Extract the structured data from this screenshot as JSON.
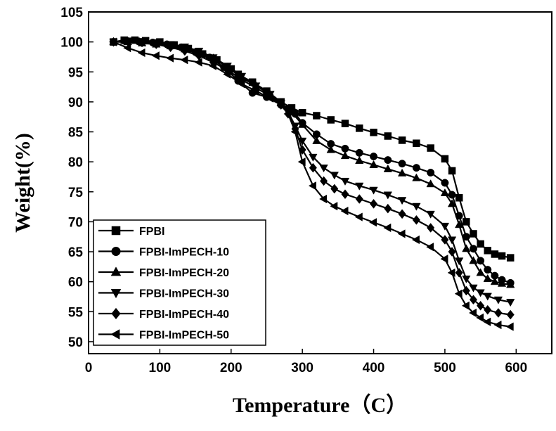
{
  "chart_data": {
    "type": "line",
    "title": "",
    "xlabel": "Temperature（C）",
    "ylabel": "Weight(%)",
    "xlim": [
      0,
      650
    ],
    "ylim": [
      48,
      105
    ],
    "xticks": [
      0,
      100,
      200,
      300,
      400,
      500,
      600
    ],
    "yticks": [
      50,
      55,
      60,
      65,
      70,
      75,
      80,
      85,
      90,
      95,
      100,
      105
    ],
    "grid": false,
    "legend_position": "bottom-left",
    "series": [
      {
        "name": "FPBI",
        "marker": "square",
        "points": [
          [
            35,
            100
          ],
          [
            50,
            100.3
          ],
          [
            65,
            100.3
          ],
          [
            80,
            100.2
          ],
          [
            100,
            100
          ],
          [
            120,
            99.5
          ],
          [
            140,
            98.9
          ],
          [
            160,
            98
          ],
          [
            180,
            97
          ],
          [
            200,
            95.5
          ],
          [
            210,
            94.6
          ],
          [
            230,
            93.3
          ],
          [
            250,
            91.8
          ],
          [
            270,
            90
          ],
          [
            285,
            89
          ],
          [
            300,
            88.2
          ],
          [
            320,
            87.7
          ],
          [
            340,
            87
          ],
          [
            360,
            86.4
          ],
          [
            380,
            85.6
          ],
          [
            400,
            84.9
          ],
          [
            420,
            84.3
          ],
          [
            440,
            83.6
          ],
          [
            460,
            83.1
          ],
          [
            480,
            82.3
          ],
          [
            500,
            80.5
          ],
          [
            510,
            78.5
          ],
          [
            520,
            74
          ],
          [
            530,
            70
          ],
          [
            540,
            68
          ],
          [
            550,
            66.3
          ],
          [
            560,
            65.2
          ],
          [
            570,
            64.6
          ],
          [
            580,
            64.3
          ],
          [
            592,
            64
          ]
        ]
      },
      {
        "name": "FPBI-ImPECH-10",
        "marker": "circle",
        "points": [
          [
            35,
            100
          ],
          [
            50,
            100.2
          ],
          [
            70,
            100.1
          ],
          [
            90,
            99.9
          ],
          [
            110,
            99.6
          ],
          [
            130,
            99.1
          ],
          [
            150,
            98.3
          ],
          [
            170,
            97.4
          ],
          [
            190,
            95.8
          ],
          [
            210,
            93.5
          ],
          [
            230,
            91.5
          ],
          [
            250,
            90.8
          ],
          [
            270,
            89.5
          ],
          [
            280,
            88.9
          ],
          [
            290,
            88
          ],
          [
            300,
            86.5
          ],
          [
            320,
            84.6
          ],
          [
            340,
            83
          ],
          [
            360,
            82.2
          ],
          [
            380,
            81.5
          ],
          [
            400,
            80.9
          ],
          [
            420,
            80.3
          ],
          [
            440,
            79.7
          ],
          [
            460,
            79
          ],
          [
            480,
            78.2
          ],
          [
            500,
            76.5
          ],
          [
            510,
            74.5
          ],
          [
            520,
            71
          ],
          [
            530,
            67.5
          ],
          [
            540,
            65.5
          ],
          [
            550,
            63.5
          ],
          [
            560,
            62
          ],
          [
            570,
            61
          ],
          [
            580,
            60.3
          ],
          [
            592,
            59.8
          ]
        ]
      },
      {
        "name": "FPBI-ImPECH-20",
        "marker": "triangle-up",
        "points": [
          [
            35,
            100
          ],
          [
            55,
            100
          ],
          [
            75,
            99.8
          ],
          [
            95,
            99.6
          ],
          [
            115,
            99.3
          ],
          [
            135,
            98.8
          ],
          [
            155,
            98.1
          ],
          [
            175,
            97.3
          ],
          [
            195,
            95.8
          ],
          [
            215,
            94
          ],
          [
            235,
            92.7
          ],
          [
            255,
            91.2
          ],
          [
            270,
            89.8
          ],
          [
            285,
            88.3
          ],
          [
            300,
            86.2
          ],
          [
            320,
            83.5
          ],
          [
            340,
            82
          ],
          [
            360,
            81
          ],
          [
            380,
            80.2
          ],
          [
            400,
            79.5
          ],
          [
            420,
            78.8
          ],
          [
            440,
            78.1
          ],
          [
            460,
            77.3
          ],
          [
            480,
            76.3
          ],
          [
            500,
            74.8
          ],
          [
            510,
            73
          ],
          [
            520,
            69.5
          ],
          [
            530,
            65.5
          ],
          [
            540,
            63.5
          ],
          [
            550,
            61.5
          ],
          [
            560,
            60.5
          ],
          [
            570,
            60
          ],
          [
            580,
            59.7
          ],
          [
            592,
            59.5
          ]
        ]
      },
      {
        "name": "FPBI-ImPECH-30",
        "marker": "triangle-down",
        "points": [
          [
            35,
            100
          ],
          [
            55,
            100.2
          ],
          [
            75,
            100.1
          ],
          [
            95,
            99.9
          ],
          [
            115,
            99.6
          ],
          [
            135,
            99.2
          ],
          [
            155,
            98.5
          ],
          [
            175,
            97.4
          ],
          [
            195,
            96
          ],
          [
            215,
            94.3
          ],
          [
            235,
            92.7
          ],
          [
            255,
            91.3
          ],
          [
            270,
            89.8
          ],
          [
            280,
            88.3
          ],
          [
            290,
            86
          ],
          [
            300,
            83.5
          ],
          [
            315,
            80.8
          ],
          [
            330,
            79
          ],
          [
            345,
            77.8
          ],
          [
            360,
            76.8
          ],
          [
            380,
            76
          ],
          [
            400,
            75.3
          ],
          [
            420,
            74.5
          ],
          [
            440,
            73.6
          ],
          [
            460,
            72.6
          ],
          [
            480,
            71.3
          ],
          [
            500,
            69.3
          ],
          [
            510,
            67
          ],
          [
            520,
            63.5
          ],
          [
            530,
            60.5
          ],
          [
            540,
            59
          ],
          [
            550,
            58.2
          ],
          [
            560,
            57.6
          ],
          [
            575,
            57
          ],
          [
            592,
            56.6
          ]
        ]
      },
      {
        "name": "FPBI-ImPECH-40",
        "marker": "diamond",
        "points": [
          [
            35,
            100
          ],
          [
            55,
            100.1
          ],
          [
            75,
            99.9
          ],
          [
            95,
            99.6
          ],
          [
            115,
            99.1
          ],
          [
            135,
            98.5
          ],
          [
            155,
            97.7
          ],
          [
            175,
            96.6
          ],
          [
            195,
            95.3
          ],
          [
            215,
            93.7
          ],
          [
            235,
            92.3
          ],
          [
            255,
            91
          ],
          [
            270,
            89.5
          ],
          [
            280,
            88
          ],
          [
            290,
            85.5
          ],
          [
            300,
            82
          ],
          [
            315,
            79
          ],
          [
            330,
            76.8
          ],
          [
            345,
            75.5
          ],
          [
            360,
            74.6
          ],
          [
            380,
            73.8
          ],
          [
            400,
            73
          ],
          [
            420,
            72.2
          ],
          [
            440,
            71.3
          ],
          [
            460,
            70.3
          ],
          [
            480,
            69
          ],
          [
            500,
            67
          ],
          [
            510,
            65
          ],
          [
            520,
            61.5
          ],
          [
            530,
            58.5
          ],
          [
            540,
            57
          ],
          [
            550,
            56
          ],
          [
            560,
            55.3
          ],
          [
            575,
            54.8
          ],
          [
            592,
            54.5
          ]
        ]
      },
      {
        "name": "FPBI-ImPECH-50",
        "marker": "triangle-left",
        "points": [
          [
            35,
            100
          ],
          [
            55,
            99
          ],
          [
            75,
            98.2
          ],
          [
            95,
            97.7
          ],
          [
            115,
            97.3
          ],
          [
            135,
            97
          ],
          [
            155,
            96.6
          ],
          [
            175,
            96
          ],
          [
            195,
            94.6
          ],
          [
            215,
            93
          ],
          [
            235,
            91.8
          ],
          [
            255,
            90.6
          ],
          [
            270,
            89.5
          ],
          [
            280,
            88
          ],
          [
            290,
            85
          ],
          [
            300,
            80
          ],
          [
            315,
            76
          ],
          [
            330,
            73.8
          ],
          [
            345,
            72.6
          ],
          [
            360,
            71.8
          ],
          [
            380,
            70.8
          ],
          [
            400,
            69.9
          ],
          [
            420,
            69
          ],
          [
            440,
            68
          ],
          [
            460,
            67
          ],
          [
            480,
            65.8
          ],
          [
            500,
            63.8
          ],
          [
            510,
            61.5
          ],
          [
            520,
            58
          ],
          [
            530,
            56
          ],
          [
            540,
            54.8
          ],
          [
            550,
            54
          ],
          [
            560,
            53.3
          ],
          [
            575,
            52.8
          ],
          [
            592,
            52.5
          ]
        ]
      }
    ]
  }
}
